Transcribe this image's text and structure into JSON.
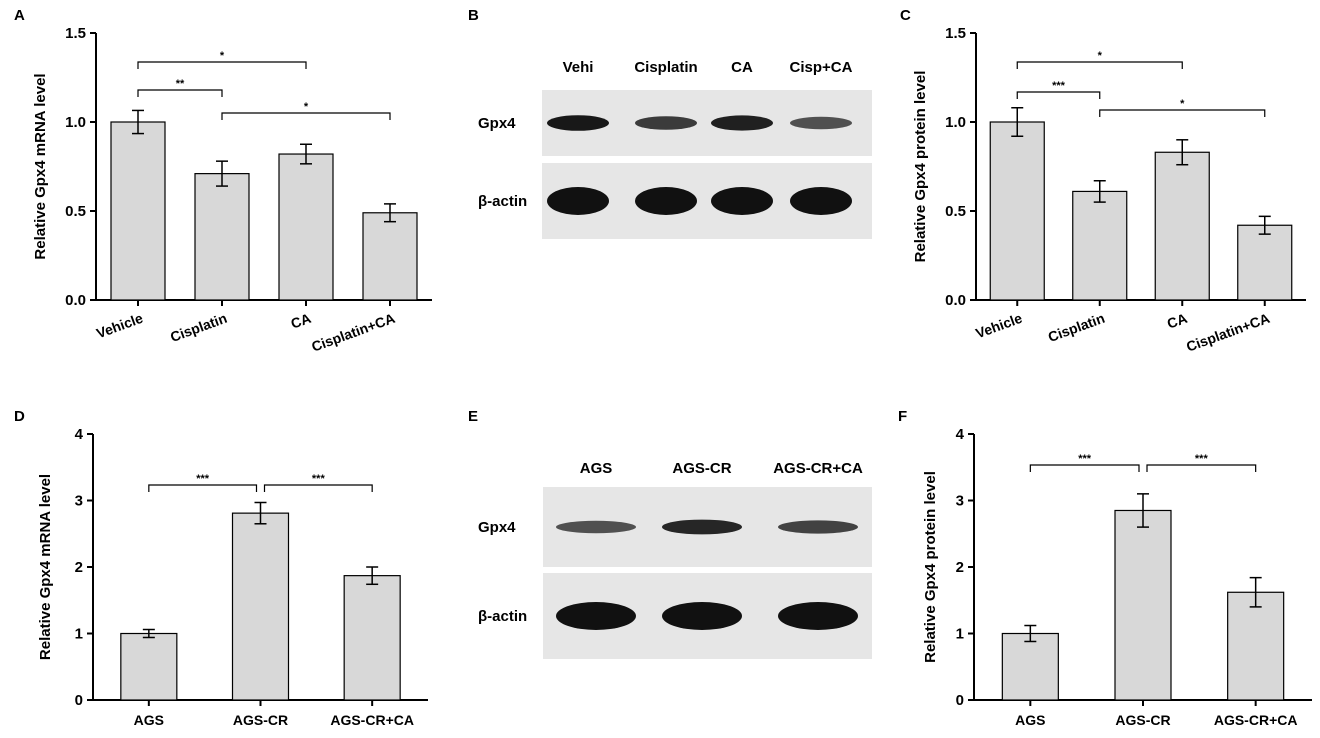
{
  "chart_data": [
    {
      "panel": "A",
      "type": "bar",
      "ylabel": "Relative Gpx4 mRNA level",
      "categories": [
        "Vehicle",
        "Cisplatin",
        "CA",
        "Cisplatin+CA"
      ],
      "values": [
        1.0,
        0.71,
        0.82,
        0.49
      ],
      "errors": [
        0.065,
        0.07,
        0.055,
        0.05
      ],
      "ylim": [
        0,
        1.5
      ],
      "yticks": [
        "0.0",
        "0.5",
        "1.0",
        "1.5"
      ],
      "x_tick_rotation": "rotated",
      "significance": [
        {
          "from": 0,
          "to": 1,
          "label": "**"
        },
        {
          "from": 0,
          "to": 2,
          "label": "*"
        },
        {
          "from": 1,
          "to": 3,
          "label": "*"
        }
      ]
    },
    {
      "panel": "C",
      "type": "bar",
      "ylabel": "Relative Gpx4 protein level",
      "categories": [
        "Vehicle",
        "Cisplatin",
        "CA",
        "Cisplatin+CA"
      ],
      "values": [
        1.0,
        0.61,
        0.83,
        0.42
      ],
      "errors": [
        0.08,
        0.06,
        0.07,
        0.05
      ],
      "ylim": [
        0,
        1.5
      ],
      "yticks": [
        "0.0",
        "0.5",
        "1.0",
        "1.5"
      ],
      "x_tick_rotation": "rotated",
      "significance": [
        {
          "from": 0,
          "to": 1,
          "label": "***"
        },
        {
          "from": 0,
          "to": 2,
          "label": "*"
        },
        {
          "from": 1,
          "to": 3,
          "label": "*"
        }
      ]
    },
    {
      "panel": "D",
      "type": "bar",
      "ylabel": "Relative Gpx4 mRNA level",
      "categories": [
        "AGS",
        "AGS-CR",
        "AGS-CR+CA"
      ],
      "values": [
        1.0,
        2.81,
        1.87
      ],
      "errors": [
        0.06,
        0.16,
        0.13
      ],
      "ylim": [
        0,
        4
      ],
      "yticks": [
        "0",
        "1",
        "2",
        "3",
        "4"
      ],
      "x_tick_rotation": "horizontal",
      "significance": [
        {
          "from": 0,
          "to": 1,
          "label": "***"
        },
        {
          "from": 1,
          "to": 2,
          "label": "***"
        }
      ]
    },
    {
      "panel": "F",
      "type": "bar",
      "ylabel": "Relative Gpx4 protein level",
      "categories": [
        "AGS",
        "AGS-CR",
        "AGS-CR+CA"
      ],
      "values": [
        1.0,
        2.85,
        1.62
      ],
      "errors": [
        0.12,
        0.25,
        0.22
      ],
      "ylim": [
        0,
        4
      ],
      "yticks": [
        "0",
        "1",
        "2",
        "3",
        "4"
      ],
      "x_tick_rotation": "horizontal",
      "significance": [
        {
          "from": 0,
          "to": 1,
          "label": "***"
        },
        {
          "from": 1,
          "to": 2,
          "label": "***"
        }
      ]
    }
  ],
  "blots": [
    {
      "panel": "B",
      "lanes": [
        "Vehi",
        "Cisplatin",
        "CA",
        "Cisp+CA"
      ],
      "rows": [
        {
          "label": "Gpx4",
          "intensity": [
            0.95,
            0.7,
            0.9,
            0.55
          ]
        },
        {
          "label": "β-actin",
          "intensity": [
            1.0,
            1.0,
            1.0,
            1.0
          ]
        }
      ]
    },
    {
      "panel": "E",
      "lanes": [
        "AGS",
        "AGS-CR",
        "AGS-CR+CA"
      ],
      "rows": [
        {
          "label": "Gpx4",
          "intensity": [
            0.55,
            0.85,
            0.65
          ]
        },
        {
          "label": "β-actin",
          "intensity": [
            1.0,
            1.0,
            1.0
          ]
        }
      ]
    }
  ],
  "colors": {
    "bar_fill": "#d8d8d8",
    "blot_bg": "#e6e6e6",
    "band": "#111111"
  }
}
